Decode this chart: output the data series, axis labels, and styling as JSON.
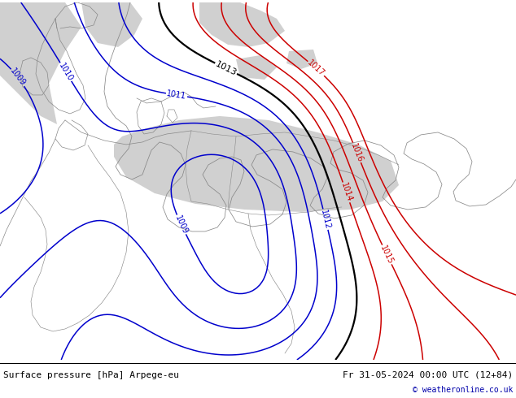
{
  "title_left": "Surface pressure [hPa] Arpege-eu",
  "title_right": "Fr 31-05-2024 00:00 UTC (12+84)",
  "copyright": "© weatheronline.co.uk",
  "bg_land_color": "#b5e87a",
  "bg_sea_color": "#d0d0d0",
  "isobar_blue_color": "#0000cc",
  "isobar_black_color": "#000000",
  "isobar_red_color": "#cc0000",
  "label_fontsize": 7,
  "footer_fontsize": 8,
  "contour_linewidth": 1.1,
  "figsize": [
    6.34,
    4.9
  ],
  "dpi": 100
}
